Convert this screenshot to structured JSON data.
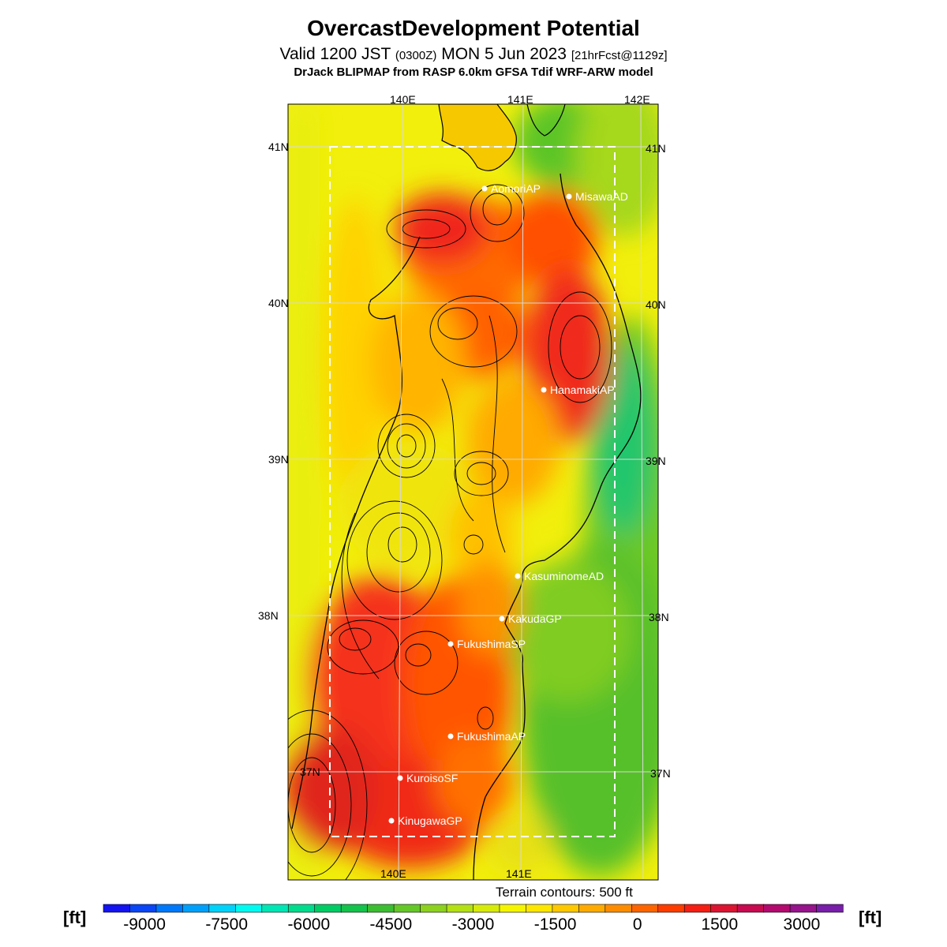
{
  "header": {
    "title": "OvercastDevelopment Potential",
    "valid_prefix": "Valid 1200 JST",
    "valid_utc": "(0300Z)",
    "valid_date": "MON 5 Jun 2023",
    "forecast": "[21hrFcst@1129z]",
    "model": "DrJack BLIPMAP from RASP 6.0km GFSA Tdif WRF-ARW model"
  },
  "grid": {
    "lon_top": [
      "140E",
      "141E",
      "142E"
    ],
    "lon_bottom": [
      "140E",
      "141E"
    ],
    "lat_left": [
      "41N",
      "40N",
      "39N",
      "38N",
      "37N"
    ],
    "lat_right": [
      "41N",
      "40N",
      "39N",
      "38N",
      "37N"
    ]
  },
  "stations": [
    {
      "name": "AomoriAP"
    },
    {
      "name": "MisawaAD"
    },
    {
      "name": "HanamakiAP"
    },
    {
      "name": "KasuminomeAD"
    },
    {
      "name": "KakudaGP"
    },
    {
      "name": "FukushimaSP"
    },
    {
      "name": "FukushimaAP"
    },
    {
      "name": "KuroisoSF"
    },
    {
      "name": "KinugawaGP"
    }
  ],
  "terrain_note": "Terrain contours: 500 ft",
  "colorbar": {
    "unit": "[ft]",
    "min": -9750,
    "max": 3750,
    "step": 375,
    "tick_labels": [
      "-9000",
      "-7500",
      "-6000",
      "-4500",
      "-3000",
      "-1500",
      "0",
      "1500",
      "3000"
    ],
    "tick_values": [
      -9000,
      -7500,
      -6000,
      -4500,
      -3000,
      -1500,
      0,
      1500,
      3000
    ],
    "colors": [
      "#1414f0",
      "#0a46f5",
      "#0078fa",
      "#00a0fa",
      "#00d2fa",
      "#00faf0",
      "#00e6b4",
      "#00dc8c",
      "#00cc64",
      "#14c34b",
      "#3cbe32",
      "#64c828",
      "#8cd21e",
      "#b4e114",
      "#d7eb0a",
      "#f5f500",
      "#ffe600",
      "#ffc800",
      "#ffaa00",
      "#ff8c00",
      "#ff6400",
      "#ff3c00",
      "#f51e14",
      "#dc1432",
      "#c80a50",
      "#b40a6e",
      "#96148c",
      "#781eaa"
    ]
  }
}
